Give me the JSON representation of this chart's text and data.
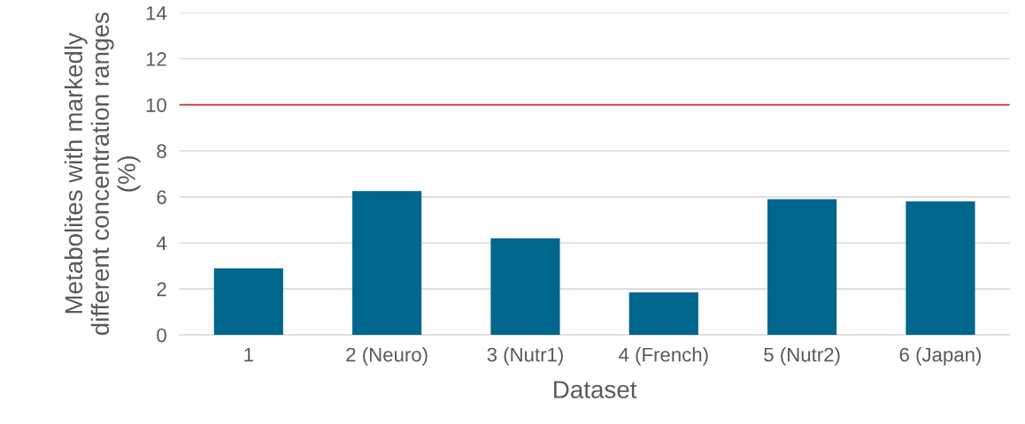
{
  "chart_data": {
    "type": "bar",
    "xlabel": "Dataset",
    "ylabel": "Metabolites with markedly different concentration ranges (%)",
    "categories": [
      "1",
      "2 (Neuro)",
      "3 (Nutr1)",
      "4 (French)",
      "5 (Nutr2)",
      "6 (Japan)"
    ],
    "values": [
      2.9,
      6.25,
      4.2,
      1.85,
      5.9,
      5.8
    ],
    "color": "#00668c",
    "ylim": [
      0,
      14
    ],
    "yticks": [
      0,
      2,
      4,
      6,
      8,
      10,
      12,
      14
    ],
    "grid": "y",
    "ref_lines": [
      {
        "axis": "y",
        "value": 10,
        "label": null,
        "color": "#c0392b"
      }
    ]
  }
}
